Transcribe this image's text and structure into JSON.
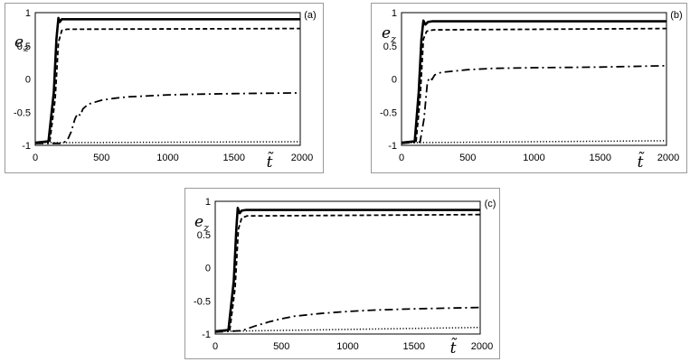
{
  "chart_data": [
    {
      "type": "line",
      "panel_label": "(a)",
      "ylabel": "e",
      "ylabel_sub": "z",
      "xlabel": "t̃",
      "xlim": [
        0,
        2000
      ],
      "ylim": [
        -1,
        1
      ],
      "x_ticks": [
        "0",
        "500",
        "1000",
        "1500",
        "2000"
      ],
      "y_ticks": [
        "1",
        "0.5",
        "0",
        "-0.5",
        "-1"
      ],
      "series": [
        {
          "style": "solid",
          "x": [
            0,
            100,
            140,
            160,
            175,
            185,
            200,
            230,
            2000
          ],
          "y": [
            -0.96,
            -0.94,
            -0.2,
            0.6,
            0.92,
            0.86,
            0.9,
            0.9,
            0.9
          ]
        },
        {
          "style": "dashed",
          "x": [
            0,
            110,
            150,
            175,
            200,
            240,
            2000
          ],
          "y": [
            -0.96,
            -0.94,
            -0.3,
            0.55,
            0.73,
            0.75,
            0.76
          ]
        },
        {
          "style": "dashdot",
          "x": [
            0,
            200,
            240,
            270,
            300,
            320,
            340,
            360,
            400,
            450,
            500,
            600,
            700,
            800,
            1000,
            1200,
            1500,
            2000
          ],
          "y": [
            -0.97,
            -0.97,
            -0.93,
            -0.8,
            -0.6,
            -0.52,
            -0.55,
            -0.45,
            -0.38,
            -0.35,
            -0.32,
            -0.29,
            -0.27,
            -0.26,
            -0.24,
            -0.23,
            -0.22,
            -0.21
          ]
        },
        {
          "style": "dotted",
          "x": [
            0,
            2000
          ],
          "y": [
            -0.96,
            -0.945
          ]
        }
      ]
    },
    {
      "type": "line",
      "panel_label": "(b)",
      "ylabel": "e",
      "ylabel_sub": "z",
      "xlabel": "t̃",
      "xlim": [
        0,
        2000
      ],
      "ylim": [
        -1,
        1
      ],
      "x_ticks": [
        "0",
        "500",
        "1000",
        "1500",
        "2000"
      ],
      "y_ticks": [
        "1",
        "0.5",
        "0",
        "-0.5",
        "-1"
      ],
      "series": [
        {
          "style": "solid",
          "x": [
            0,
            100,
            130,
            150,
            165,
            180,
            200,
            230,
            2000
          ],
          "y": [
            -0.96,
            -0.94,
            -0.2,
            0.6,
            0.88,
            0.82,
            0.86,
            0.87,
            0.87
          ]
        },
        {
          "style": "dashed",
          "x": [
            0,
            110,
            140,
            165,
            190,
            240,
            2000
          ],
          "y": [
            -0.96,
            -0.94,
            -0.3,
            0.6,
            0.72,
            0.74,
            0.76
          ]
        },
        {
          "style": "dashdot",
          "x": [
            0,
            140,
            170,
            195,
            210,
            230,
            250,
            300,
            400,
            500,
            700,
            1000,
            1500,
            2000
          ],
          "y": [
            -0.97,
            -0.95,
            -0.6,
            -0.05,
            0.02,
            -0.01,
            0.06,
            0.1,
            0.12,
            0.14,
            0.16,
            0.17,
            0.18,
            0.2
          ]
        },
        {
          "style": "dotted",
          "x": [
            0,
            2000
          ],
          "y": [
            -0.96,
            -0.93
          ]
        }
      ]
    },
    {
      "type": "line",
      "panel_label": "(c)",
      "ylabel": "e",
      "ylabel_sub": "z",
      "xlabel": "t̃",
      "xlim": [
        0,
        2000
      ],
      "ylim": [
        -1,
        1
      ],
      "x_ticks": [
        "0",
        "500",
        "1000",
        "1500",
        "2000"
      ],
      "y_ticks": [
        "1",
        "0.5",
        "0",
        "-0.5",
        "-1"
      ],
      "series": [
        {
          "style": "solid",
          "x": [
            0,
            100,
            140,
            160,
            170,
            185,
            200,
            230,
            2000
          ],
          "y": [
            -0.96,
            -0.94,
            -0.2,
            0.6,
            0.9,
            0.82,
            0.86,
            0.87,
            0.87
          ]
        },
        {
          "style": "dashed",
          "x": [
            0,
            110,
            150,
            175,
            200,
            240,
            2000
          ],
          "y": [
            -0.96,
            -0.94,
            -0.3,
            0.58,
            0.75,
            0.78,
            0.8
          ]
        },
        {
          "style": "dashdot",
          "x": [
            0,
            200,
            300,
            400,
            500,
            600,
            800,
            1000,
            1200,
            1500,
            2000
          ],
          "y": [
            -0.97,
            -0.95,
            -0.88,
            -0.82,
            -0.77,
            -0.73,
            -0.69,
            -0.66,
            -0.64,
            -0.62,
            -0.6
          ]
        },
        {
          "style": "dotted",
          "x": [
            0,
            2000
          ],
          "y": [
            -0.96,
            -0.9
          ]
        }
      ]
    }
  ]
}
